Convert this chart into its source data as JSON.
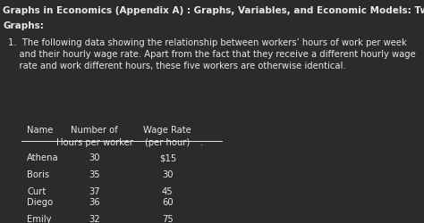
{
  "title_line1": "Graphs in Economics (Appendix A) : Graphs, Variables, and Economic Models: Two Variable",
  "title_line2": "Graphs:",
  "paragraph": "1.  The following data showing the relationship between workers’ hours of work per week\n    and their hourly wage rate. Apart from the fact that they receive a different hourly wage\n    rate and work different hours, these five workers are otherwise identical.",
  "col_header1_line1": "Number of",
  "col_header1_line2": "Hours per worker",
  "col_header2_line1": "Wage Rate",
  "col_header2_line2": "(per hour)",
  "col_name": "Name",
  "names": [
    "Athena",
    "Boris",
    "Curt",
    "Diego",
    "Emily"
  ],
  "hours": [
    "30",
    "35",
    "37",
    "36",
    "32"
  ],
  "wages": [
    "$15",
    "30",
    "45",
    "60",
    "75"
  ],
  "bg_color": "#2b2b2b",
  "text_color": "#e8e8e8",
  "title_fontsize": 7.5,
  "body_fontsize": 7.2,
  "table_fontsize": 7.2
}
